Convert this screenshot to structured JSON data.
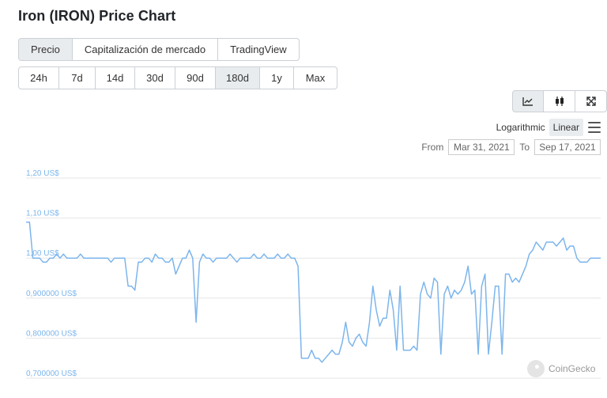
{
  "title": "Iron (IRON) Price Chart",
  "tabs": [
    {
      "label": "Precio",
      "active": true
    },
    {
      "label": "Capitalización de mercado",
      "active": false
    },
    {
      "label": "TradingView",
      "active": false
    }
  ],
  "ranges": [
    {
      "label": "24h",
      "active": false
    },
    {
      "label": "7d",
      "active": false
    },
    {
      "label": "14d",
      "active": false
    },
    {
      "label": "30d",
      "active": false
    },
    {
      "label": "90d",
      "active": false
    },
    {
      "label": "180d",
      "active": true
    },
    {
      "label": "1y",
      "active": false
    },
    {
      "label": "Max",
      "active": false
    }
  ],
  "chart_icons": [
    "line-chart-icon",
    "candlestick-icon",
    "fullscreen-icon"
  ],
  "scale": {
    "logarithmic": "Logarithmic",
    "linear": "Linear",
    "selected": "Linear"
  },
  "date_range": {
    "from_label": "From",
    "from": "Mar 31, 2021",
    "to_label": "To",
    "to": "Sep 17, 2021"
  },
  "watermark": "CoinGecko",
  "colors": {
    "line": "#7cb5ec",
    "grid": "#e6e6e6",
    "active_bg": "#e9ecef"
  },
  "chart_data": {
    "type": "line",
    "title": "",
    "xlabel": "",
    "ylabel": "",
    "x_start": "2021-03-31",
    "x_end": "2021-09-17",
    "ylim": [
      0.7,
      1.2
    ],
    "y_ticks": [
      {
        "value": 1.2,
        "label": "1,20 US$"
      },
      {
        "value": 1.1,
        "label": "1,10 US$"
      },
      {
        "value": 1.0,
        "label": "1,00 US$"
      },
      {
        "value": 0.9,
        "label": "0,900000 US$"
      },
      {
        "value": 0.8,
        "label": "0,800000 US$"
      },
      {
        "value": 0.7,
        "label": "0,700000 US$"
      }
    ],
    "grid": true,
    "legend": "none",
    "series": [
      {
        "values": [
          1.09,
          1.09,
          1.0,
          1.0,
          1.0,
          0.99,
          0.99,
          1.0,
          1.0,
          1.01,
          1.0,
          1.01,
          1.0,
          1.0,
          1.0,
          1.0,
          1.01,
          1.0,
          1.0,
          1.0,
          1.0,
          1.0,
          1.0,
          1.0,
          1.0,
          0.99,
          1.0,
          1.0,
          1.0,
          1.0,
          0.93,
          0.93,
          0.92,
          0.99,
          0.99,
          1.0,
          1.0,
          0.99,
          1.01,
          1.0,
          1.0,
          0.99,
          0.99,
          1.0,
          0.96,
          0.98,
          1.0,
          1.0,
          1.02,
          1.0,
          0.84,
          0.99,
          1.01,
          1.0,
          1.0,
          0.99,
          1.0,
          1.0,
          1.0,
          1.0,
          1.01,
          1.0,
          0.99,
          1.0,
          1.0,
          1.0,
          1.0,
          1.01,
          1.0,
          1.0,
          1.01,
          1.0,
          1.0,
          1.0,
          1.01,
          1.0,
          1.0,
          1.01,
          1.0,
          1.0,
          0.98,
          0.75,
          0.75,
          0.75,
          0.77,
          0.75,
          0.75,
          0.74,
          0.75,
          0.76,
          0.77,
          0.76,
          0.76,
          0.79,
          0.84,
          0.79,
          0.78,
          0.8,
          0.81,
          0.79,
          0.78,
          0.84,
          0.93,
          0.87,
          0.83,
          0.85,
          0.85,
          0.92,
          0.87,
          0.77,
          0.93,
          0.77,
          0.77,
          0.77,
          0.78,
          0.77,
          0.91,
          0.94,
          0.91,
          0.9,
          0.95,
          0.94,
          0.76,
          0.91,
          0.93,
          0.9,
          0.92,
          0.91,
          0.92,
          0.94,
          0.98,
          0.91,
          0.92,
          0.76,
          0.93,
          0.96,
          0.76,
          0.84,
          0.93,
          0.93,
          0.76,
          0.96,
          0.96,
          0.94,
          0.95,
          0.94,
          0.96,
          0.98,
          1.01,
          1.02,
          1.04,
          1.03,
          1.02,
          1.04,
          1.04,
          1.04,
          1.03,
          1.04,
          1.05,
          1.02,
          1.03,
          1.03,
          1.0,
          0.99,
          0.99,
          0.99,
          1.0,
          1.0,
          1.0,
          1.0
        ]
      }
    ]
  }
}
